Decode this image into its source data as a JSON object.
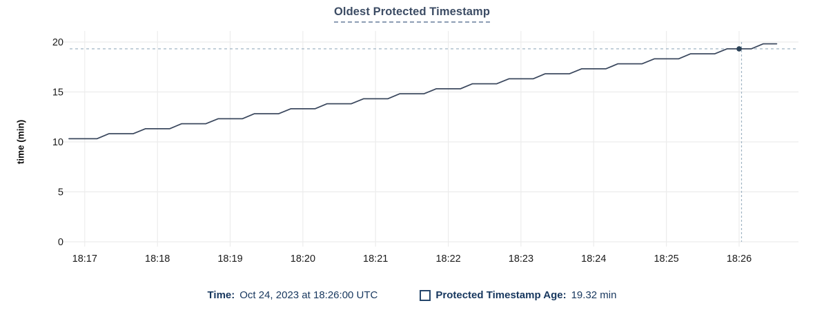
{
  "title": "Oldest Protected Timestamp",
  "colors": {
    "background": "#ffffff",
    "title": "#3c4c64",
    "title_underline": "#8b9cb3",
    "grid": "#ececec",
    "tick_text": "#1a1a1a",
    "line": "#3b485e",
    "crosshair": "#9fb3c3",
    "dot": "#2b4257",
    "footer_text": "#17375e",
    "swatch_border": "#24456b"
  },
  "chart_data": {
    "type": "line",
    "title": "Oldest Protected Timestamp",
    "xlabel": "",
    "ylabel": "time (min)",
    "ylim": [
      0,
      20
    ],
    "yticks": [
      0,
      5,
      10,
      15,
      20
    ],
    "xticks": [
      "18:17",
      "18:18",
      "18:19",
      "18:20",
      "18:21",
      "18:22",
      "18:23",
      "18:24",
      "18:25",
      "18:26"
    ],
    "x_range": [
      "18:16:47",
      "18:26:49"
    ],
    "grid": true,
    "legend_position": "bottom",
    "series": [
      {
        "name": "Protected Timestamp Age",
        "unit": "min",
        "points": [
          [
            "18:16:47",
            10.32
          ],
          [
            "18:17:10",
            10.32
          ],
          [
            "18:17:20",
            10.82
          ],
          [
            "18:17:40",
            10.82
          ],
          [
            "18:17:50",
            11.32
          ],
          [
            "18:18:10",
            11.32
          ],
          [
            "18:18:20",
            11.82
          ],
          [
            "18:18:40",
            11.82
          ],
          [
            "18:18:50",
            12.32
          ],
          [
            "18:19:10",
            12.32
          ],
          [
            "18:19:20",
            12.82
          ],
          [
            "18:19:40",
            12.82
          ],
          [
            "18:19:50",
            13.32
          ],
          [
            "18:20:10",
            13.32
          ],
          [
            "18:20:20",
            13.82
          ],
          [
            "18:20:40",
            13.82
          ],
          [
            "18:20:50",
            14.32
          ],
          [
            "18:21:10",
            14.32
          ],
          [
            "18:21:20",
            14.82
          ],
          [
            "18:21:40",
            14.82
          ],
          [
            "18:21:50",
            15.32
          ],
          [
            "18:22:10",
            15.32
          ],
          [
            "18:22:20",
            15.82
          ],
          [
            "18:22:40",
            15.82
          ],
          [
            "18:22:50",
            16.32
          ],
          [
            "18:23:10",
            16.32
          ],
          [
            "18:23:20",
            16.82
          ],
          [
            "18:23:40",
            16.82
          ],
          [
            "18:23:50",
            17.32
          ],
          [
            "18:24:10",
            17.32
          ],
          [
            "18:24:20",
            17.82
          ],
          [
            "18:24:40",
            17.82
          ],
          [
            "18:24:50",
            18.32
          ],
          [
            "18:25:10",
            18.32
          ],
          [
            "18:25:20",
            18.82
          ],
          [
            "18:25:40",
            18.82
          ],
          [
            "18:25:50",
            19.32
          ],
          [
            "18:26:10",
            19.32
          ],
          [
            "18:26:20",
            19.82
          ],
          [
            "18:26:31",
            19.82
          ]
        ]
      }
    ],
    "hover": {
      "time": "18:26:00",
      "crosshair_time": "18:26:02",
      "value": 19.32
    }
  },
  "footer": {
    "time_label": "Time:",
    "time_value": "Oct 24, 2023 at 18:26:00 UTC",
    "age_label": "Protected Timestamp Age:",
    "age_value": "19.32 min"
  }
}
